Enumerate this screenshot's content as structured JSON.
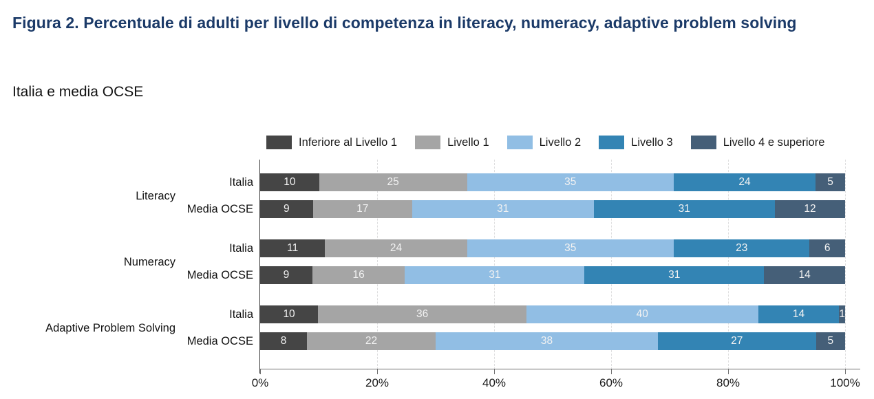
{
  "figure": {
    "title": "Figura 2. Percentuale di adulti per livello di competenza in literacy, numeracy, adaptive problem solving",
    "subtitle": "Italia e media OCSE"
  },
  "colors": {
    "title": "#1B3A68",
    "value_label": "#F2F2F2",
    "axis_line": "#6E6E6E",
    "gridline": "#DDDDDE"
  },
  "chart_data": {
    "type": "bar",
    "orientation": "horizontal",
    "stacked": true,
    "title": "Figura 2. Percentuale di adulti per livello di competenza in literacy, numeracy, adaptive problem solving",
    "subtitle": "Italia e media OCSE",
    "legend": [
      "Inferiore al Livello 1",
      "Livello 1",
      "Livello 2",
      "Livello 3",
      "Livello 4 e superiore"
    ],
    "legend_position": "top",
    "series_colors": [
      "#454545",
      "#A5A5A5",
      "#91BEE4",
      "#3384B4",
      "#455F78"
    ],
    "groups": [
      "Literacy",
      "Numeracy",
      "Adaptive Problem Solving"
    ],
    "rows": [
      {
        "group": "Literacy",
        "label": "Italia",
        "values": [
          10,
          25,
          35,
          24,
          5
        ]
      },
      {
        "group": "Literacy",
        "label": "Media OCSE",
        "values": [
          9,
          17,
          31,
          31,
          12
        ]
      },
      {
        "group": "Numeracy",
        "label": "Italia",
        "values": [
          11,
          24,
          35,
          23,
          6
        ]
      },
      {
        "group": "Numeracy",
        "label": "Media OCSE",
        "values": [
          9,
          16,
          31,
          31,
          14
        ]
      },
      {
        "group": "Adaptive Problem Solving",
        "label": "Italia",
        "values": [
          10,
          36,
          40,
          14,
          1
        ]
      },
      {
        "group": "Adaptive Problem Solving",
        "label": "Media OCSE",
        "values": [
          8,
          22,
          38,
          27,
          5
        ]
      }
    ],
    "x_ticks": [
      "0%",
      "20%",
      "40%",
      "60%",
      "80%",
      "100%"
    ],
    "xlim": [
      0,
      100
    ],
    "grid": "vertical dashed lines every 20%"
  }
}
